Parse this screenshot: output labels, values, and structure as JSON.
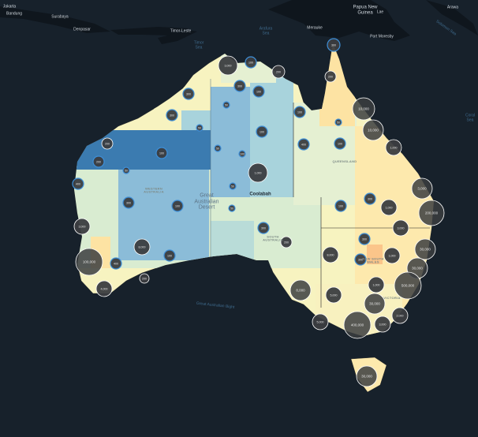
{
  "map": {
    "colors": {
      "ocean": "#17212b",
      "land_dark": "#0f161d",
      "wa_north": "#3b7bb0",
      "interior_blue": "#8bbcd8",
      "light_blue": "#a8d3dc",
      "pale_green": "#d9ecd1",
      "pale_yellow": "#f7f3c0",
      "orange": "#fbd49a",
      "cluster_fill": "#3b3d40",
      "cluster_ring_large": "#ffffff",
      "cluster_ring_small": "#3e8fd8"
    },
    "labels": {
      "jakarta": "Jakarta",
      "bandung": "Bandung",
      "surabaya": "Surabaya",
      "denpasar": "Denpasar",
      "timor_leste": "Timor-Leste",
      "timor_sea": "Timor Sea",
      "arafura_sea": "Arafura Sea",
      "merauke": "Merauke",
      "png": "Papua New Guinea",
      "lae": "Lae",
      "port_moresby": "Port Moresby",
      "ambon": "Arawa",
      "solomon_sea": "Solomon Sea",
      "coral_sea": "Coral Sea",
      "western_australia": "WESTERN AUSTRALIA",
      "south_australia": "SOUTH AUSTRALIA",
      "queensland": "QUEENSLAND",
      "nsw": "NEW SOUTH WALES",
      "victoria": "VICTORIA",
      "desert": "Great Australian Desert",
      "coolabah": "Coolabah",
      "bight": "Great Australian Bight"
    },
    "clusters": [
      {
        "label": "300",
        "size": "small"
      },
      {
        "label": "3,000",
        "size": "large"
      },
      {
        "label": "100",
        "size": "small"
      },
      {
        "label": "200",
        "size": "large"
      },
      {
        "label": "300",
        "size": "small"
      },
      {
        "label": "300",
        "size": "small"
      },
      {
        "label": "100",
        "size": "small"
      },
      {
        "label": "200",
        "size": "large"
      },
      {
        "label": "300",
        "size": "small"
      },
      {
        "label": "50",
        "size": "small"
      },
      {
        "label": "50",
        "size": "small"
      },
      {
        "label": "100",
        "size": "small"
      },
      {
        "label": "10,000",
        "size": "large"
      },
      {
        "label": "10,000",
        "size": "large"
      },
      {
        "label": "1,000",
        "size": "large"
      },
      {
        "label": "50",
        "size": "small"
      },
      {
        "label": "100",
        "size": "small"
      },
      {
        "label": "400",
        "size": "small"
      },
      {
        "label": "100",
        "size": "small"
      },
      {
        "label": "50",
        "size": "small"
      },
      {
        "label": "100",
        "size": "small"
      },
      {
        "label": "100",
        "size": "small"
      },
      {
        "label": "200",
        "size": "large"
      },
      {
        "label": "200",
        "size": "small"
      },
      {
        "label": "50",
        "size": "small"
      },
      {
        "label": "400",
        "size": "small"
      },
      {
        "label": "300",
        "size": "small"
      },
      {
        "label": "100",
        "size": "small"
      },
      {
        "label": "1,000",
        "size": "large"
      },
      {
        "label": "50",
        "size": "small"
      },
      {
        "label": "50",
        "size": "small"
      },
      {
        "label": "300",
        "size": "small"
      },
      {
        "label": "200",
        "size": "large"
      },
      {
        "label": "3,000",
        "size": "large"
      },
      {
        "label": "8,000",
        "size": "large"
      },
      {
        "label": "100",
        "size": "small"
      },
      {
        "label": "100,000",
        "size": "large"
      },
      {
        "label": "400",
        "size": "small"
      },
      {
        "label": "200",
        "size": "large"
      },
      {
        "label": "4,000",
        "size": "large"
      },
      {
        "label": "3,000",
        "size": "large"
      },
      {
        "label": "200,000",
        "size": "large"
      },
      {
        "label": "100",
        "size": "small"
      },
      {
        "label": "300",
        "size": "small"
      },
      {
        "label": "1,000",
        "size": "large"
      },
      {
        "label": "3,000",
        "size": "large"
      },
      {
        "label": "300",
        "size": "small"
      },
      {
        "label": "8,000",
        "size": "large"
      },
      {
        "label": "300",
        "size": "small"
      },
      {
        "label": "1,000",
        "size": "large"
      },
      {
        "label": "30,000",
        "size": "large"
      },
      {
        "label": "30,000",
        "size": "large"
      },
      {
        "label": "1,000",
        "size": "large"
      },
      {
        "label": "500,000",
        "size": "large"
      },
      {
        "label": "8,000",
        "size": "large"
      },
      {
        "label": "5,000",
        "size": "large"
      },
      {
        "label": "30,000",
        "size": "large"
      },
      {
        "label": "2,000",
        "size": "large"
      },
      {
        "label": "5,000",
        "size": "large"
      },
      {
        "label": "400,000",
        "size": "large"
      },
      {
        "label": "3,000",
        "size": "large"
      },
      {
        "label": "30,000",
        "size": "large"
      }
    ]
  }
}
